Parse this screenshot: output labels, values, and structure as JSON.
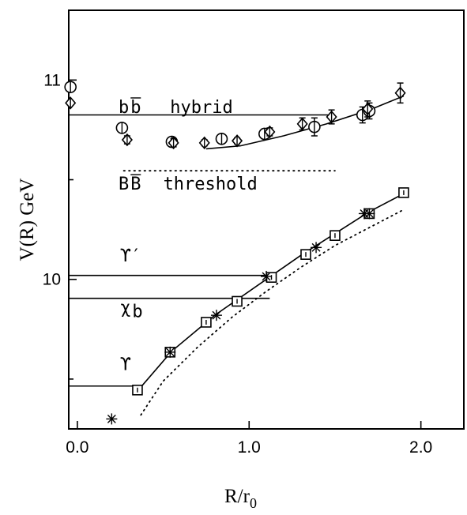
{
  "chart_data": {
    "type": "scatter",
    "title": "",
    "xlabel": "R/r",
    "xlabel_sub": "0",
    "ylabel": "V(R) GeV",
    "xlim": [
      -0.05,
      2.25
    ],
    "ylim": [
      9.25,
      11.35
    ],
    "x_ticks": [
      0.0,
      1.0,
      2.0
    ],
    "x_tick_labels": [
      "0.0",
      "1.0",
      "2.0"
    ],
    "y_ticks": [
      10,
      11
    ],
    "y_tick_labels": [
      "10",
      "11"
    ],
    "y_minor_ticks": [
      9.5,
      10.5
    ],
    "grid": false,
    "levels": [
      {
        "label": "bb̄ hybrid",
        "y": 10.825,
        "x_end": 1.48
      },
      {
        "label": "ϒ′",
        "y": 10.02,
        "x_end": 1.12
      },
      {
        "label": "χb",
        "y": 9.905,
        "x_end": 1.12
      },
      {
        "label": "ϒ",
        "y": 9.465,
        "x_end": 0.35
      }
    ],
    "threshold": {
      "label": "BB̄ threshold",
      "y": 10.545,
      "x_range": [
        0.27,
        1.5
      ]
    },
    "annotations": [
      {
        "text": "b",
        "x": 0.24,
        "y": 10.835
      },
      {
        "text": "b",
        "x": 0.31,
        "y": 10.835
      },
      {
        "text": "hybrid",
        "x": 0.54,
        "y": 10.835
      },
      {
        "text": "B",
        "x": 0.24,
        "y": 10.45
      },
      {
        "text": "B",
        "x": 0.31,
        "y": 10.45
      },
      {
        "text": "threshold",
        "x": 0.5,
        "y": 10.45
      },
      {
        "text": "ϒ′",
        "x": 0.25,
        "y": 10.09
      },
      {
        "text": "χ",
        "x": 0.25,
        "y": 9.83
      },
      {
        "text": "b",
        "x": 0.32,
        "y": 9.81
      },
      {
        "text": "ϒ",
        "x": 0.25,
        "y": 9.545
      }
    ],
    "series": [
      {
        "name": "ground-state potential fit",
        "style": "solid line",
        "x": [
          0.35,
          0.55,
          0.8,
          1.1,
          1.3,
          1.5,
          1.7,
          1.9
        ],
        "y": [
          9.44,
          9.64,
          9.82,
          10.0,
          10.12,
          10.23,
          10.34,
          10.43
        ]
      },
      {
        "name": "hybrid potential fit",
        "style": "solid line",
        "x": [
          0.75,
          0.95,
          1.2,
          1.45,
          1.7,
          1.9
        ],
        "y": [
          10.655,
          10.67,
          10.72,
          10.78,
          10.85,
          10.92
        ]
      },
      {
        "name": "dotted potential curve",
        "style": "dotted line",
        "x": [
          0.37,
          0.5,
          0.7,
          0.9,
          1.1,
          1.3,
          1.5,
          1.7,
          1.9
        ],
        "y": [
          9.32,
          9.49,
          9.66,
          9.81,
          9.94,
          10.06,
          10.17,
          10.26,
          10.35
        ]
      },
      {
        "name": "squares",
        "marker": "square",
        "x": [
          0.35,
          0.54,
          0.75,
          0.93,
          1.13,
          1.33,
          1.5,
          1.7,
          1.9
        ],
        "y": [
          9.445,
          9.635,
          9.785,
          9.89,
          10.01,
          10.125,
          10.22,
          10.33,
          10.435
        ]
      },
      {
        "name": "stars",
        "marker": "star",
        "x": [
          0.2,
          0.54,
          0.81,
          1.1,
          1.39,
          1.67,
          1.7
        ],
        "y": [
          9.3,
          9.635,
          9.82,
          10.015,
          10.16,
          10.33,
          10.33
        ]
      },
      {
        "name": "circles",
        "marker": "circle",
        "x": [
          -0.04,
          0.26,
          0.55,
          0.84,
          1.09,
          1.38,
          1.66,
          1.7
        ],
        "y": [
          10.965,
          10.76,
          10.69,
          10.705,
          10.73,
          10.765,
          10.825,
          10.845
        ],
        "err": [
          0,
          0.02,
          0.02,
          0.02,
          0.025,
          0.045,
          0.04,
          0.04
        ]
      },
      {
        "name": "diamonds",
        "marker": "diamond",
        "x": [
          -0.04,
          0.29,
          0.56,
          0.74,
          0.93,
          1.12,
          1.31,
          1.48,
          1.69,
          1.88
        ],
        "y": [
          10.885,
          10.7,
          10.685,
          10.685,
          10.695,
          10.74,
          10.78,
          10.815,
          10.855,
          10.935
        ],
        "err": [
          0,
          0.02,
          0.02,
          0.015,
          0.015,
          0.02,
          0.03,
          0.035,
          0.04,
          0.05
        ]
      }
    ]
  }
}
